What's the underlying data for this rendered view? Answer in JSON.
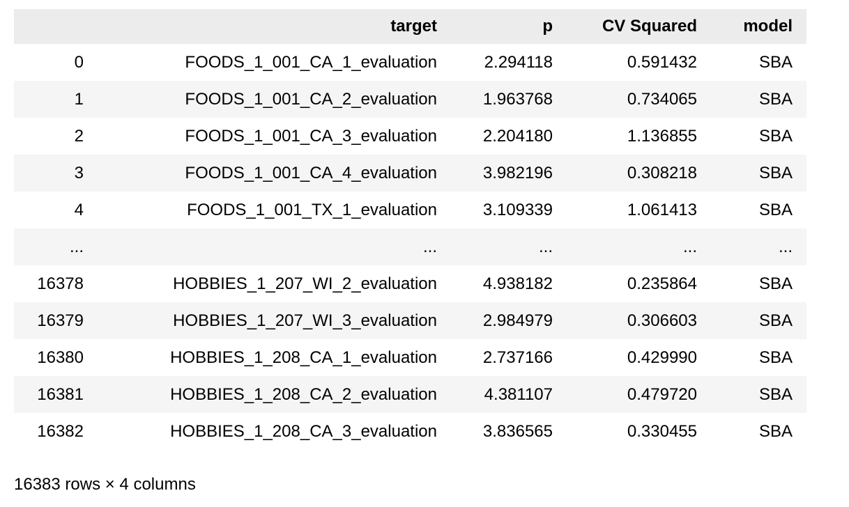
{
  "table": {
    "index_header": "",
    "columns": [
      "target",
      "p",
      "CV Squared",
      "model"
    ],
    "rows": [
      [
        "0",
        "FOODS_1_001_CA_1_evaluation",
        "2.294118",
        "0.591432",
        "SBA"
      ],
      [
        "1",
        "FOODS_1_001_CA_2_evaluation",
        "1.963768",
        "0.734065",
        "SBA"
      ],
      [
        "2",
        "FOODS_1_001_CA_3_evaluation",
        "2.204180",
        "1.136855",
        "SBA"
      ],
      [
        "3",
        "FOODS_1_001_CA_4_evaluation",
        "3.982196",
        "0.308218",
        "SBA"
      ],
      [
        "4",
        "FOODS_1_001_TX_1_evaluation",
        "3.109339",
        "1.061413",
        "SBA"
      ],
      [
        "...",
        "...",
        "...",
        "...",
        "..."
      ],
      [
        "16378",
        "HOBBIES_1_207_WI_2_evaluation",
        "4.938182",
        "0.235864",
        "SBA"
      ],
      [
        "16379",
        "HOBBIES_1_207_WI_3_evaluation",
        "2.984979",
        "0.306603",
        "SBA"
      ],
      [
        "16380",
        "HOBBIES_1_208_CA_1_evaluation",
        "2.737166",
        "0.429990",
        "SBA"
      ],
      [
        "16381",
        "HOBBIES_1_208_CA_2_evaluation",
        "4.381107",
        "0.479720",
        "SBA"
      ],
      [
        "16382",
        "HOBBIES_1_208_CA_3_evaluation",
        "3.836565",
        "0.330455",
        "SBA"
      ]
    ],
    "footer": "16383 rows × 4 columns"
  },
  "colors": {
    "header_bg": "#ececec",
    "stripe_bg": "#f5f5f5",
    "text": "#000000",
    "page_bg": "#ffffff"
  }
}
